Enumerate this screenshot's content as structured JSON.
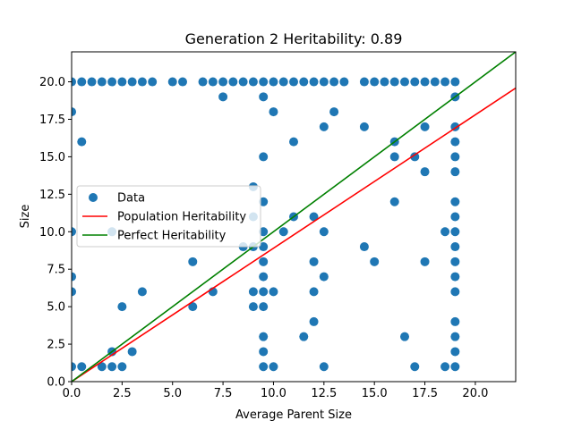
{
  "chart_data": {
    "type": "scatter",
    "title": "Generation 2 Heritability: 0.89",
    "xlabel": "Average Parent Size",
    "ylabel": "Size",
    "xlim": [
      0,
      22
    ],
    "ylim": [
      0,
      22
    ],
    "xticks": [
      0.0,
      2.5,
      5.0,
      7.5,
      10.0,
      12.5,
      15.0,
      17.5,
      20.0
    ],
    "yticks": [
      0.0,
      2.5,
      5.0,
      7.5,
      10.0,
      12.5,
      15.0,
      17.5,
      20.0
    ],
    "xtick_labels": [
      "0.0",
      "2.5",
      "5.0",
      "7.5",
      "10.0",
      "12.5",
      "15.0",
      "17.5",
      "20.0"
    ],
    "ytick_labels": [
      "0.0",
      "2.5",
      "5.0",
      "7.5",
      "10.0",
      "12.5",
      "15.0",
      "17.5",
      "20.0"
    ],
    "grid": false,
    "legend_position": "center-left",
    "legend": [
      "Data",
      "Population Heritability",
      "Perfect Heritability"
    ],
    "colors": {
      "data": "#1f77b4",
      "population": "#ff0000",
      "perfect": "#008000"
    },
    "series": [
      {
        "name": "Data",
        "kind": "scatter",
        "points": [
          [
            0,
            20
          ],
          [
            0.5,
            20
          ],
          [
            1,
            20
          ],
          [
            1.5,
            20
          ],
          [
            2,
            20
          ],
          [
            2.5,
            20
          ],
          [
            3,
            20
          ],
          [
            3.5,
            20
          ],
          [
            4,
            20
          ],
          [
            5,
            20
          ],
          [
            5.5,
            20
          ],
          [
            6.5,
            20
          ],
          [
            7,
            20
          ],
          [
            7.5,
            20
          ],
          [
            8,
            20
          ],
          [
            8.5,
            20
          ],
          [
            9,
            20
          ],
          [
            9.5,
            20
          ],
          [
            10,
            20
          ],
          [
            10.5,
            20
          ],
          [
            11,
            20
          ],
          [
            11.5,
            20
          ],
          [
            12,
            20
          ],
          [
            12.5,
            20
          ],
          [
            13,
            20
          ],
          [
            13.5,
            20
          ],
          [
            14.5,
            20
          ],
          [
            15,
            20
          ],
          [
            15.5,
            20
          ],
          [
            16,
            20
          ],
          [
            16.5,
            20
          ],
          [
            17,
            20
          ],
          [
            17.5,
            20
          ],
          [
            18,
            20
          ],
          [
            18.5,
            20
          ],
          [
            19,
            20
          ],
          [
            0,
            18
          ],
          [
            0.5,
            16
          ],
          [
            0,
            10
          ],
          [
            0,
            7
          ],
          [
            0,
            6
          ],
          [
            0,
            1
          ],
          [
            0.5,
            1
          ],
          [
            1.5,
            1
          ],
          [
            2,
            1
          ],
          [
            2.5,
            1
          ],
          [
            2,
            2
          ],
          [
            3,
            2
          ],
          [
            2.5,
            5
          ],
          [
            3.5,
            6
          ],
          [
            2,
            10
          ],
          [
            6,
            8
          ],
          [
            6,
            5
          ],
          [
            7,
            6
          ],
          [
            7.5,
            19
          ],
          [
            8.5,
            9
          ],
          [
            9,
            13
          ],
          [
            9,
            11
          ],
          [
            9,
            9
          ],
          [
            9,
            6
          ],
          [
            9,
            5
          ],
          [
            9.5,
            19
          ],
          [
            9.5,
            15
          ],
          [
            9.5,
            12
          ],
          [
            9.5,
            10
          ],
          [
            9.5,
            9
          ],
          [
            9.5,
            8
          ],
          [
            9.5,
            7
          ],
          [
            9.5,
            6
          ],
          [
            9.5,
            5
          ],
          [
            9.5,
            3
          ],
          [
            9.5,
            2
          ],
          [
            9.5,
            1
          ],
          [
            10,
            18
          ],
          [
            10,
            6
          ],
          [
            10,
            1
          ],
          [
            10.5,
            10
          ],
          [
            11,
            16
          ],
          [
            11,
            11
          ],
          [
            11.5,
            3
          ],
          [
            12,
            11
          ],
          [
            12,
            8
          ],
          [
            12,
            6
          ],
          [
            12,
            4
          ],
          [
            12.5,
            17
          ],
          [
            12.5,
            10
          ],
          [
            12.5,
            7
          ],
          [
            12.5,
            1
          ],
          [
            13,
            18
          ],
          [
            14.5,
            17
          ],
          [
            14.5,
            9
          ],
          [
            15,
            8
          ],
          [
            16,
            16
          ],
          [
            16,
            15
          ],
          [
            16,
            12
          ],
          [
            16.5,
            3
          ],
          [
            17,
            15
          ],
          [
            17,
            1
          ],
          [
            17.5,
            17
          ],
          [
            17.5,
            14
          ],
          [
            17.5,
            8
          ],
          [
            18.5,
            10
          ],
          [
            18.5,
            1
          ],
          [
            19,
            19
          ],
          [
            19,
            17
          ],
          [
            19,
            16
          ],
          [
            19,
            15
          ],
          [
            19,
            14
          ],
          [
            19,
            12
          ],
          [
            19,
            11
          ],
          [
            19,
            10
          ],
          [
            19,
            9
          ],
          [
            19,
            8
          ],
          [
            19,
            7
          ],
          [
            19,
            6
          ],
          [
            19,
            4
          ],
          [
            19,
            3
          ],
          [
            19,
            2
          ],
          [
            19,
            1
          ]
        ]
      },
      {
        "name": "Population Heritability",
        "kind": "line",
        "points": [
          [
            0,
            0
          ],
          [
            22,
            19.58
          ]
        ]
      },
      {
        "name": "Perfect Heritability",
        "kind": "line",
        "points": [
          [
            0,
            0
          ],
          [
            22,
            22
          ]
        ]
      }
    ]
  }
}
